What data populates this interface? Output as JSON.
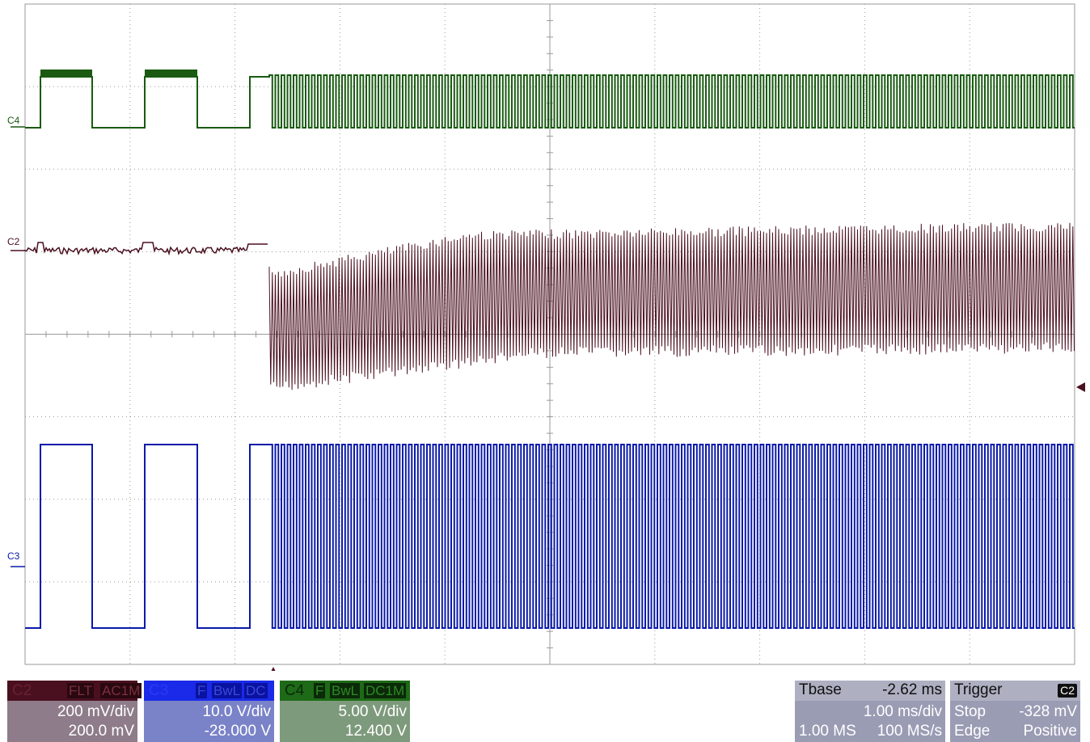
{
  "grid": {
    "cols": 10,
    "rows": 8
  },
  "colors": {
    "c2": "#4a1020",
    "c3": "#0a1aa8",
    "c4": "#1a5a12",
    "grid": "#9a9a9a",
    "background": "#ffffff"
  },
  "traces": [
    {
      "id": "C2",
      "label": "C2"
    },
    {
      "id": "C3",
      "label": "C3"
    },
    {
      "id": "C4",
      "label": "C4"
    }
  ],
  "channels": [
    {
      "id": "C2",
      "name": "C2",
      "tags": [
        "FLT",
        "AC1M"
      ],
      "volts_div": "200 mV/div",
      "offset": "200.0 mV"
    },
    {
      "id": "C3",
      "name": "C3",
      "tags": [
        "F",
        "BwL",
        "DC"
      ],
      "volts_div": "10.0 V/div",
      "offset": "-28.000 V"
    },
    {
      "id": "C4",
      "name": "C4",
      "tags": [
        "F",
        "BwL",
        "DC1M"
      ],
      "volts_div": "5.00 V/div",
      "offset": "12.400 V"
    }
  ],
  "timebase": {
    "label": "Tbase",
    "delay": "-2.62 ms",
    "time_div": "1.00 ms/div",
    "samples": "1.00 MS",
    "rate": "100 MS/s"
  },
  "trigger": {
    "label": "Trigger",
    "source": "C2",
    "mode": "Stop",
    "level": "-328 mV",
    "type": "Edge",
    "slope": "Positive"
  }
}
